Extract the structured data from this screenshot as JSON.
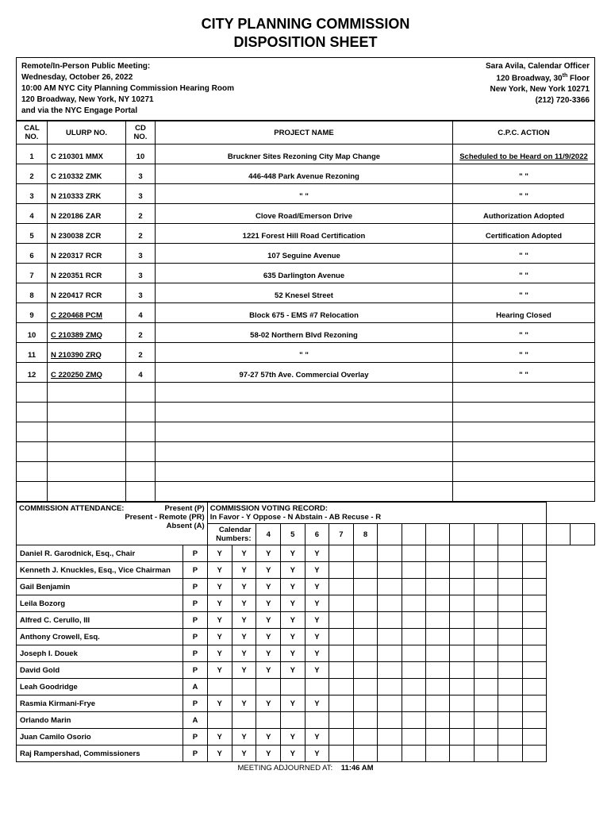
{
  "title1": "CITY PLANNING COMMISSION",
  "title2": "DISPOSITION SHEET",
  "header": {
    "line1": "Remote/In-Person Public Meeting:",
    "line2": "Wednesday, October 26, 2022",
    "line3": "10:00 AM NYC City Planning Commission Hearing Room",
    "line4": "120 Broadway, New York, NY 10271",
    "line5": "and via the NYC Engage Portal",
    "officer": "Sara Avila, Calendar Officer",
    "addr1": "120 Broadway, 30",
    "addr1_sup": "th",
    "addr1_end": " Floor",
    "addr2": "New York, New York  10271",
    "phone": "(212) 720-3366"
  },
  "cols": {
    "cal1": "CAL",
    "cal2": "NO.",
    "ulurp": "ULURP NO.",
    "cd1": "CD",
    "cd2": "NO.",
    "project": "PROJECT NAME",
    "action": "C.P.C. ACTION"
  },
  "rows": [
    {
      "n": "1",
      "u": "C 210301 MMX",
      "cd": "10",
      "p": "Bruckner Sites Rezoning City Map Change",
      "a": "Scheduled to be Heard on 11/9/2022",
      "ul": true
    },
    {
      "n": "2",
      "u": "C 210332 ZMK",
      "cd": "3",
      "p": "446-448 Park Avenue Rezoning",
      "a": "\"          \"",
      "ul": false
    },
    {
      "n": "3",
      "u": "N 210333 ZRK",
      "cd": "3",
      "p": "\"          \"",
      "a": "\"          \"",
      "ul": false
    },
    {
      "n": "4",
      "u": "N 220186 ZAR",
      "cd": "2",
      "p": "Clove Road/Emerson Drive",
      "a": "Authorization Adopted",
      "ul": false
    },
    {
      "n": "5",
      "u": "N 230038 ZCR",
      "cd": "2",
      "p": "1221 Forest Hill Road Certification",
      "a": "Certification Adopted",
      "ul": false
    },
    {
      "n": "6",
      "u": "N 220317 RCR",
      "cd": "3",
      "p": "107 Seguine Avenue",
      "a": "\"          \"",
      "ul": false
    },
    {
      "n": "7",
      "u": "N 220351 RCR",
      "cd": "3",
      "p": "635 Darlington Avenue",
      "a": "\"          \"",
      "ul": false
    },
    {
      "n": "8",
      "u": "N 220417 RCR",
      "cd": "3",
      "p": "52 Knesel Street",
      "a": "\"          \"",
      "ul": false
    },
    {
      "n": "9",
      "u": "C 220468 PCM",
      "cd": "4",
      "p": "Block 675 - EMS #7 Relocation",
      "a": "Hearing Closed",
      "uul": true
    },
    {
      "n": "10",
      "u": "C 210389 ZMQ",
      "cd": "2",
      "p": "58-02 Northern Blvd Rezoning",
      "a": "\"          \"",
      "uul": true
    },
    {
      "n": "11",
      "u": "N 210390 ZRQ",
      "cd": "2",
      "p": "\"          \"",
      "a": "\"          \"",
      "uul": true
    },
    {
      "n": "12",
      "u": "C 220250 ZMQ",
      "cd": "4",
      "p": "97-27 57th Ave. Commercial Overlay",
      "a": "\"          \"",
      "uul": true
    }
  ],
  "attendance": {
    "label": "COMMISSION ATTENDANCE:",
    "p": "Present    (P)",
    "pr": "Present  - Remote   (PR)",
    "a": "Absent    (A)",
    "voting": "COMMISSION VOTING RECORD:",
    "legend": "In Favor - Y    Oppose - N    Abstain - AB    Recuse - R",
    "caln": "Calendar Numbers:"
  },
  "calnums": [
    "4",
    "5",
    "6",
    "7",
    "8"
  ],
  "members": [
    {
      "name": "Daniel R. Garodnick, Esq., Chair",
      "att": "P",
      "v": [
        "Y",
        "Y",
        "Y",
        "Y",
        "Y"
      ]
    },
    {
      "name": "Kenneth J. Knuckles, Esq., Vice Chairman",
      "att": "P",
      "v": [
        "Y",
        "Y",
        "Y",
        "Y",
        "Y"
      ]
    },
    {
      "name": "Gail Benjamin",
      "att": "P",
      "v": [
        "Y",
        "Y",
        "Y",
        "Y",
        "Y"
      ]
    },
    {
      "name": "Leila Bozorg",
      "att": "P",
      "v": [
        "Y",
        "Y",
        "Y",
        "Y",
        "Y"
      ]
    },
    {
      "name": "Alfred C. Cerullo, III",
      "att": "P",
      "v": [
        "Y",
        "Y",
        "Y",
        "Y",
        "Y"
      ]
    },
    {
      "name": "Anthony Crowell, Esq.",
      "att": "P",
      "v": [
        "Y",
        "Y",
        "Y",
        "Y",
        "Y"
      ]
    },
    {
      "name": "Joseph I. Douek",
      "att": "P",
      "v": [
        "Y",
        "Y",
        "Y",
        "Y",
        "Y"
      ]
    },
    {
      "name": "David Gold",
      "att": "P",
      "v": [
        "Y",
        "Y",
        "Y",
        "Y",
        "Y"
      ]
    },
    {
      "name": "Leah Goodridge",
      "att": "A",
      "v": [
        "",
        "",
        "",
        "",
        ""
      ]
    },
    {
      "name": "Rasmia Kirmani-Frye",
      "att": "P",
      "v": [
        "Y",
        "Y",
        "Y",
        "Y",
        "Y"
      ]
    },
    {
      "name": "Orlando Marin",
      "att": "A",
      "v": [
        "",
        "",
        "",
        "",
        ""
      ]
    },
    {
      "name": "Juan Camilo Osorio",
      "att": "P",
      "v": [
        "Y",
        "Y",
        "Y",
        "Y",
        "Y"
      ]
    },
    {
      "name": "Raj Rampershad,  Commissioners",
      "att": "P",
      "v": [
        "Y",
        "Y",
        "Y",
        "Y",
        "Y"
      ]
    }
  ],
  "footer": {
    "label": "MEETING ADJOURNED AT:",
    "time": "11:46 AM"
  }
}
